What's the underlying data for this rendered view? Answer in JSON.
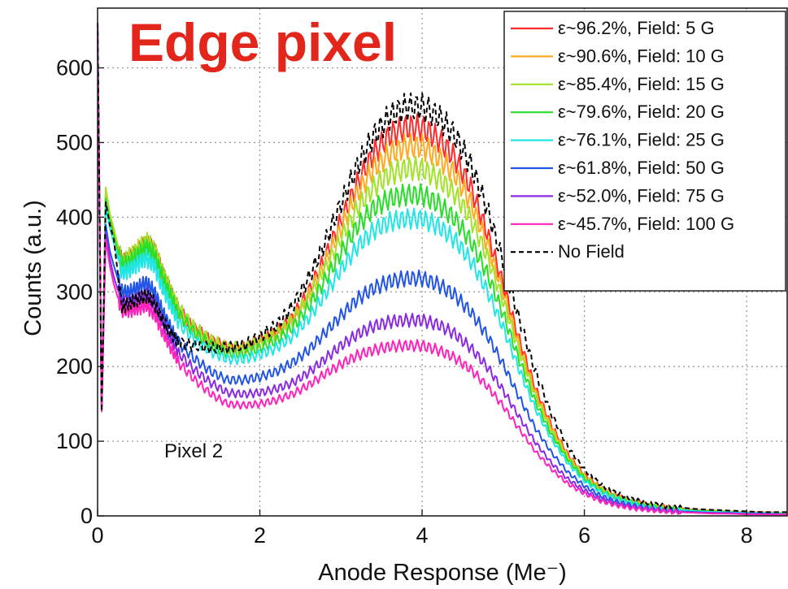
{
  "chart_data": {
    "type": "line",
    "title": "Edge pixel",
    "xlabel": "Anode Response (Me⁻)",
    "ylabel": "Counts (a.u.)",
    "xlim": [
      0,
      8.5
    ],
    "ylim": [
      0,
      680
    ],
    "x_ticks": [
      0,
      2,
      4,
      6,
      8
    ],
    "y_ticks": [
      0,
      100,
      200,
      300,
      400,
      500,
      600
    ],
    "grid": true,
    "legend_position": "top-right",
    "annotation": "Pixel 2",
    "x": [
      0.0,
      0.05,
      0.1,
      0.15,
      0.2,
      0.3,
      0.4,
      0.5,
      0.6,
      0.7,
      0.8,
      0.9,
      1.0,
      1.2,
      1.4,
      1.6,
      1.8,
      2.0,
      2.2,
      2.4,
      2.6,
      2.8,
      3.0,
      3.2,
      3.4,
      3.6,
      3.8,
      4.0,
      4.2,
      4.4,
      4.6,
      4.8,
      5.0,
      5.2,
      5.4,
      5.6,
      5.8,
      6.0,
      6.2,
      6.4,
      6.6,
      6.8,
      7.0,
      7.2,
      7.4,
      7.6,
      7.8,
      8.0,
      8.2,
      8.5
    ],
    "series": [
      {
        "name": "ε~96.2%, Field: 5 G",
        "color": "#ff2a2a",
        "values": [
          660,
          140,
          435,
          400,
          380,
          340,
          345,
          355,
          365,
          355,
          325,
          300,
          275,
          250,
          235,
          225,
          225,
          235,
          245,
          265,
          300,
          345,
          395,
          445,
          485,
          510,
          520,
          520,
          505,
          480,
          440,
          380,
          310,
          235,
          170,
          120,
          82,
          55,
          38,
          27,
          20,
          15,
          12,
          10,
          8,
          7,
          6,
          5,
          5,
          4
        ]
      },
      {
        "name": "ε~90.6%, Field: 10 G",
        "color": "#ffaa22",
        "values": [
          660,
          140,
          430,
          395,
          375,
          335,
          342,
          352,
          362,
          352,
          322,
          298,
          272,
          248,
          232,
          222,
          222,
          232,
          242,
          262,
          295,
          338,
          385,
          432,
          465,
          485,
          495,
          495,
          480,
          458,
          420,
          365,
          300,
          228,
          165,
          117,
          80,
          54,
          37,
          26,
          19,
          14,
          11,
          9,
          8,
          7,
          6,
          5,
          5,
          4
        ]
      },
      {
        "name": "ε~85.4%, Field: 15 G",
        "color": "#a3e22b",
        "values": [
          660,
          140,
          440,
          405,
          385,
          340,
          348,
          358,
          368,
          358,
          328,
          302,
          278,
          252,
          236,
          226,
          226,
          234,
          244,
          262,
          292,
          330,
          372,
          412,
          440,
          458,
          465,
          465,
          452,
          432,
          398,
          348,
          288,
          220,
          160,
          113,
          78,
          52,
          36,
          25,
          18,
          14,
          11,
          9,
          7,
          6,
          5,
          5,
          4,
          4
        ]
      },
      {
        "name": "ε~79.6%, Field: 20 G",
        "color": "#2bdd2b",
        "values": [
          660,
          140,
          425,
          395,
          375,
          335,
          340,
          350,
          360,
          350,
          320,
          295,
          270,
          245,
          228,
          218,
          218,
          225,
          235,
          252,
          280,
          315,
          352,
          388,
          412,
          425,
          430,
          430,
          418,
          398,
          368,
          325,
          270,
          208,
          152,
          108,
          75,
          50,
          34,
          24,
          18,
          13,
          10,
          8,
          7,
          6,
          5,
          4,
          4,
          3
        ]
      },
      {
        "name": "ε~76.1%, Field: 25 G",
        "color": "#22e6e6",
        "values": [
          660,
          140,
          415,
          385,
          365,
          325,
          330,
          338,
          345,
          335,
          305,
          282,
          258,
          235,
          220,
          210,
          210,
          216,
          225,
          240,
          265,
          296,
          330,
          360,
          382,
          394,
          398,
          398,
          388,
          370,
          342,
          302,
          252,
          195,
          143,
          102,
          70,
          47,
          32,
          23,
          17,
          12,
          9,
          8,
          6,
          5,
          5,
          4,
          4,
          3
        ]
      },
      {
        "name": "ε~61.8%, Field: 50 G",
        "color": "#2255e6",
        "values": [
          660,
          140,
          390,
          355,
          335,
          300,
          300,
          306,
          312,
          300,
          274,
          252,
          232,
          210,
          193,
          182,
          182,
          186,
          193,
          205,
          222,
          245,
          268,
          290,
          305,
          314,
          318,
          318,
          310,
          296,
          273,
          242,
          203,
          158,
          117,
          84,
          58,
          40,
          27,
          19,
          14,
          10,
          8,
          6,
          5,
          4,
          4,
          3,
          3,
          2
        ]
      },
      {
        "name": "ε~52.0%, Field: 75 G",
        "color": "#8a2be2",
        "values": [
          660,
          140,
          380,
          345,
          320,
          285,
          285,
          290,
          295,
          285,
          260,
          238,
          218,
          195,
          178,
          165,
          163,
          165,
          170,
          178,
          192,
          210,
          228,
          243,
          254,
          260,
          262,
          262,
          256,
          244,
          225,
          200,
          168,
          132,
          98,
          70,
          49,
          34,
          23,
          16,
          12,
          9,
          7,
          5,
          4,
          4,
          3,
          3,
          2,
          2
        ]
      },
      {
        "name": "ε~45.7%, Field: 100 G",
        "color": "#ff22bb",
        "values": [
          660,
          140,
          370,
          335,
          310,
          275,
          275,
          278,
          282,
          270,
          246,
          225,
          205,
          182,
          163,
          150,
          148,
          150,
          155,
          163,
          175,
          190,
          203,
          215,
          222,
          227,
          228,
          228,
          222,
          212,
          196,
          174,
          147,
          116,
          86,
          62,
          43,
          30,
          20,
          14,
          10,
          8,
          6,
          5,
          4,
          3,
          3,
          2,
          2,
          2
        ]
      },
      {
        "name": "No Field",
        "color": "#000000",
        "dashed": true,
        "values": [
          660,
          140,
          420,
          390,
          370,
          280,
          285,
          290,
          295,
          285,
          262,
          245,
          232,
          228,
          225,
          225,
          228,
          240,
          255,
          280,
          318,
          365,
          418,
          468,
          508,
          535,
          548,
          548,
          535,
          510,
          470,
          412,
          340,
          262,
          192,
          135,
          92,
          62,
          42,
          30,
          22,
          17,
          13,
          11,
          9,
          8,
          7,
          6,
          5,
          5
        ]
      }
    ]
  }
}
